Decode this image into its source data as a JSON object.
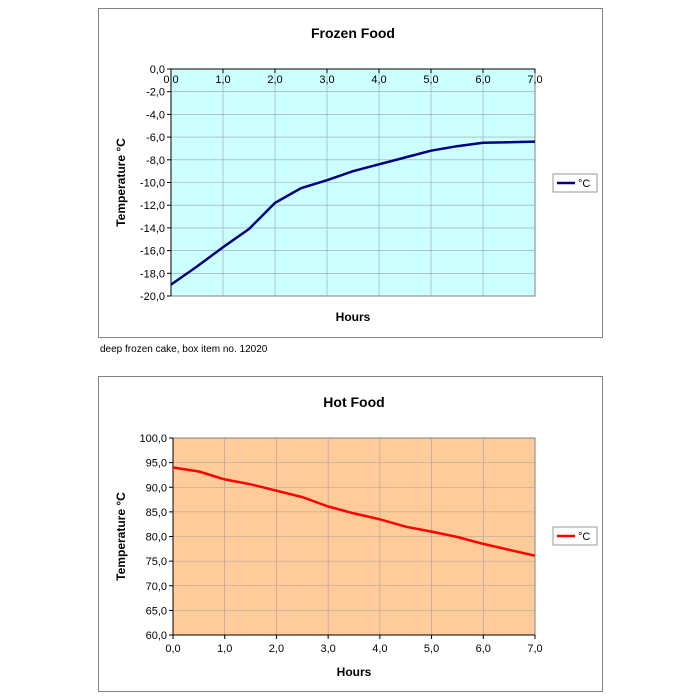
{
  "caption": "deep frozen cake, box item no. 12020",
  "chart_data": [
    {
      "type": "line",
      "title": "Frozen Food",
      "xlabel": "Hours",
      "ylabel": "Temperature °C",
      "xlim": [
        0,
        7
      ],
      "ylim": [
        -20,
        0
      ],
      "x_ticks": [
        "0,0",
        "1,0",
        "2,0",
        "3,0",
        "4,0",
        "5,0",
        "6,0",
        "7,0"
      ],
      "y_ticks": [
        "0,0",
        "-2,0",
        "-4,0",
        "-6,0",
        "-8,0",
        "-10,0",
        "-12,0",
        "-14,0",
        "-16,0",
        "-18,0",
        "-20,0"
      ],
      "x_tick_position": "top",
      "grid": true,
      "plot_background": "#ccffff",
      "legend": "right",
      "series": [
        {
          "name": "°C",
          "color": "#000080",
          "x": [
            0,
            0.5,
            1,
            1.5,
            2,
            2.5,
            3,
            3.5,
            4,
            4.5,
            5,
            5.5,
            6,
            6.5,
            7
          ],
          "y": [
            -19,
            -17.4,
            -15.7,
            -14.1,
            -11.8,
            -10.5,
            -9.8,
            -9.0,
            -8.4,
            -7.8,
            -7.2,
            -6.8,
            -6.5,
            -6.45,
            -6.4
          ]
        }
      ]
    },
    {
      "type": "line",
      "title": "Hot Food",
      "xlabel": "Hours",
      "ylabel": "Temperature °C",
      "xlim": [
        0,
        7
      ],
      "ylim": [
        60,
        100
      ],
      "x_ticks": [
        "0,0",
        "1,0",
        "2,0",
        "3,0",
        "4,0",
        "5,0",
        "6,0",
        "7,0"
      ],
      "y_ticks": [
        "100,0",
        "95,0",
        "90,0",
        "85,0",
        "80,0",
        "75,0",
        "70,0",
        "65,0",
        "60,0"
      ],
      "x_tick_position": "bottom",
      "grid": true,
      "plot_background": "#ffcc99",
      "legend": "right",
      "series": [
        {
          "name": "°C",
          "color": "#ff0000",
          "x": [
            0,
            0.5,
            1,
            1.5,
            2,
            2.5,
            3,
            3.5,
            4,
            4.5,
            5,
            5.5,
            6,
            6.5,
            7
          ],
          "y": [
            94,
            93.2,
            91.6,
            90.6,
            89.3,
            88,
            86.1,
            84.7,
            83.5,
            82,
            81,
            79.9,
            78.5,
            77.3,
            76.1
          ]
        }
      ]
    }
  ]
}
